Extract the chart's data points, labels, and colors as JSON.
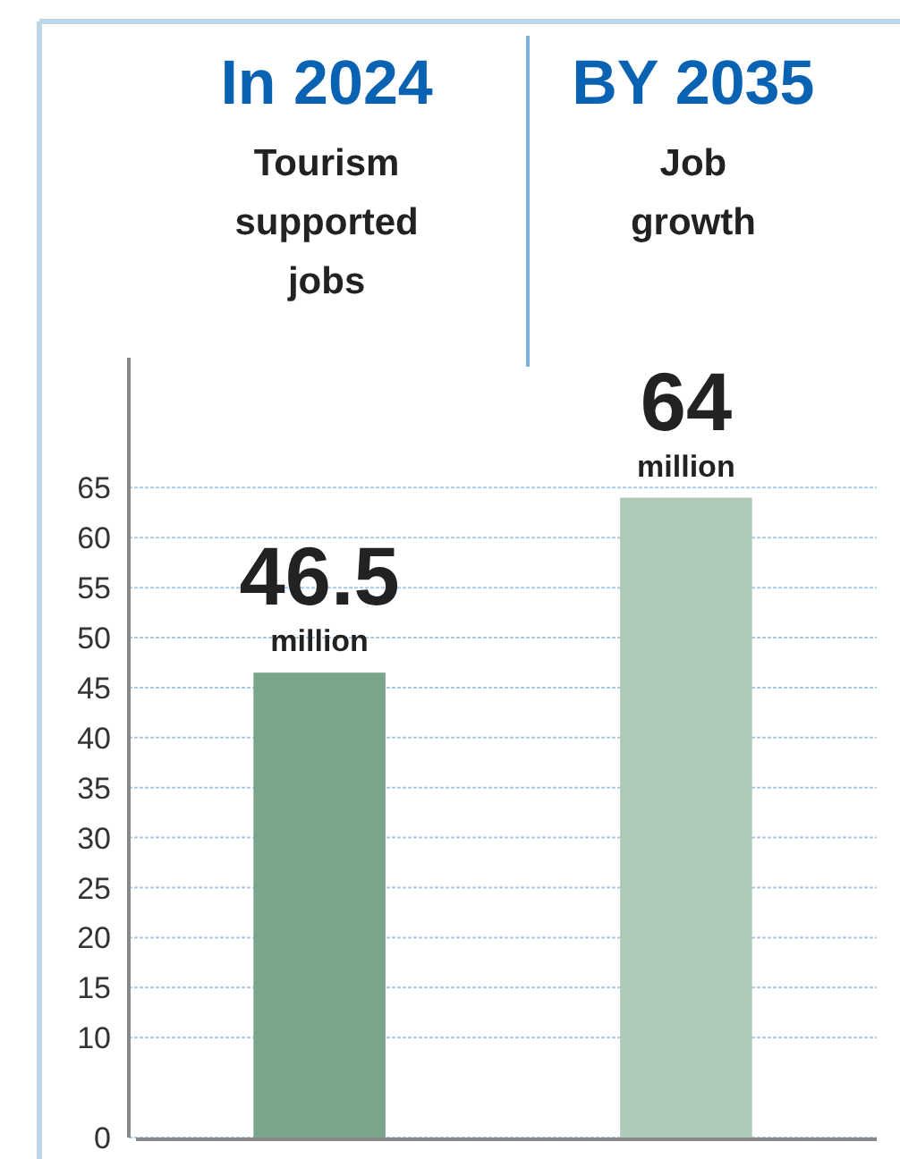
{
  "chart_data": {
    "type": "bar",
    "categories": [
      "In 2024",
      "BY 2035"
    ],
    "values": [
      46.5,
      64
    ],
    "colors": [
      "#79a58a",
      "#afc9b8"
    ],
    "value_labels": [
      "46.5 million",
      "64 million"
    ],
    "annotations": [
      "Tourism supported jobs",
      "Job growth"
    ],
    "ylim": [
      0,
      78
    ],
    "yticks": [
      0,
      10,
      15,
      20,
      25,
      30,
      35,
      40,
      45,
      50,
      55,
      60,
      65
    ],
    "grid": "y"
  }
}
